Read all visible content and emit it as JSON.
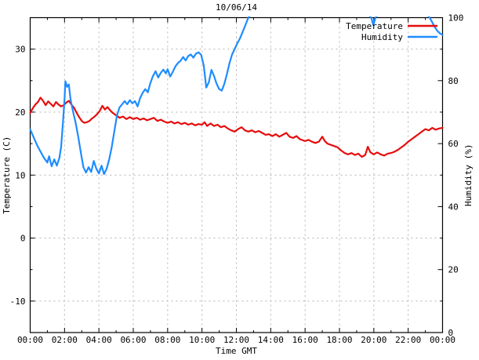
{
  "title": "10/06/14",
  "colors": {
    "temperature": "#e60d0d",
    "humidity": "#1e8cff",
    "grid": "#b3b3b3",
    "border": "#000000",
    "background": "#ffffff",
    "text": "#000000"
  },
  "chart_data": {
    "type": "line",
    "title": "10/06/14",
    "xlabel": "Time GMT",
    "ylabel_left": "Temperature (C)",
    "ylabel_right": "Humidity (%)",
    "xlim_hours": [
      0,
      24
    ],
    "ylim_left": [
      -15,
      35
    ],
    "ylim_right": [
      0,
      100
    ],
    "x_major_ticks_hours": [
      0,
      2,
      4,
      6,
      8,
      10,
      12,
      14,
      16,
      18,
      20,
      22,
      24
    ],
    "x_tick_labels": [
      "00:00",
      "02:00",
      "04:00",
      "06:00",
      "08:00",
      "10:00",
      "12:00",
      "14:00",
      "16:00",
      "18:00",
      "20:00",
      "22:00",
      "00:00"
    ],
    "x_minor_step_hours": 1,
    "left_major_ticks": [
      -10,
      0,
      10,
      20,
      30
    ],
    "left_minor_ticks": [
      -5,
      5,
      15,
      25
    ],
    "right_major_ticks": [
      0,
      20,
      40,
      60,
      80,
      100
    ],
    "right_minor_ticks": [
      10,
      30,
      50,
      70,
      90
    ],
    "grid": true,
    "grid_vertical_hours": [
      2,
      4,
      6,
      8,
      10,
      12,
      14,
      16,
      18,
      20,
      22
    ],
    "grid_horizontal_left_values": [
      -10,
      0,
      10,
      20,
      30
    ],
    "legend_position": "top-right-inside-no-box",
    "series": [
      {
        "name": "Temperature",
        "axis": "left",
        "color": "#e60d0d",
        "points": [
          [
            0.0,
            19.9
          ],
          [
            0.15,
            20.6
          ],
          [
            0.3,
            21.2
          ],
          [
            0.45,
            21.6
          ],
          [
            0.6,
            22.3
          ],
          [
            0.75,
            21.8
          ],
          [
            0.9,
            21.1
          ],
          [
            1.05,
            21.7
          ],
          [
            1.2,
            21.3
          ],
          [
            1.35,
            20.9
          ],
          [
            1.5,
            21.6
          ],
          [
            1.65,
            21.2
          ],
          [
            1.8,
            20.9
          ],
          [
            1.95,
            21.1
          ],
          [
            2.1,
            21.5
          ],
          [
            2.25,
            21.8
          ],
          [
            2.4,
            21.2
          ],
          [
            2.55,
            20.7
          ],
          [
            2.7,
            19.9
          ],
          [
            2.85,
            19.2
          ],
          [
            3.0,
            18.6
          ],
          [
            3.15,
            18.3
          ],
          [
            3.3,
            18.4
          ],
          [
            3.45,
            18.6
          ],
          [
            3.6,
            19.0
          ],
          [
            3.75,
            19.3
          ],
          [
            3.9,
            19.7
          ],
          [
            4.05,
            20.2
          ],
          [
            4.2,
            21.0
          ],
          [
            4.35,
            20.4
          ],
          [
            4.5,
            20.8
          ],
          [
            4.65,
            20.3
          ],
          [
            4.8,
            19.9
          ],
          [
            5.0,
            19.5
          ],
          [
            5.2,
            19.1
          ],
          [
            5.4,
            19.3
          ],
          [
            5.6,
            18.9
          ],
          [
            5.8,
            19.2
          ],
          [
            6.0,
            18.9
          ],
          [
            6.2,
            19.1
          ],
          [
            6.4,
            18.8
          ],
          [
            6.6,
            19.0
          ],
          [
            6.8,
            18.7
          ],
          [
            7.0,
            18.9
          ],
          [
            7.2,
            19.1
          ],
          [
            7.4,
            18.6
          ],
          [
            7.6,
            18.8
          ],
          [
            7.8,
            18.5
          ],
          [
            8.0,
            18.3
          ],
          [
            8.2,
            18.5
          ],
          [
            8.4,
            18.2
          ],
          [
            8.6,
            18.4
          ],
          [
            8.8,
            18.1
          ],
          [
            9.0,
            18.3
          ],
          [
            9.2,
            18.0
          ],
          [
            9.4,
            18.2
          ],
          [
            9.6,
            17.9
          ],
          [
            9.8,
            18.1
          ],
          [
            10.0,
            18.0
          ],
          [
            10.15,
            18.4
          ],
          [
            10.3,
            17.8
          ],
          [
            10.5,
            18.2
          ],
          [
            10.7,
            17.8
          ],
          [
            10.9,
            18.0
          ],
          [
            11.1,
            17.6
          ],
          [
            11.3,
            17.8
          ],
          [
            11.5,
            17.4
          ],
          [
            11.7,
            17.1
          ],
          [
            11.9,
            16.9
          ],
          [
            12.1,
            17.3
          ],
          [
            12.3,
            17.6
          ],
          [
            12.5,
            17.1
          ],
          [
            12.7,
            16.9
          ],
          [
            12.9,
            17.1
          ],
          [
            13.1,
            16.8
          ],
          [
            13.3,
            17.0
          ],
          [
            13.5,
            16.7
          ],
          [
            13.7,
            16.4
          ],
          [
            13.9,
            16.5
          ],
          [
            14.1,
            16.2
          ],
          [
            14.3,
            16.5
          ],
          [
            14.5,
            16.1
          ],
          [
            14.7,
            16.4
          ],
          [
            14.9,
            16.7
          ],
          [
            15.1,
            16.1
          ],
          [
            15.3,
            15.9
          ],
          [
            15.5,
            16.2
          ],
          [
            15.7,
            15.7
          ],
          [
            16.0,
            15.4
          ],
          [
            16.2,
            15.6
          ],
          [
            16.4,
            15.3
          ],
          [
            16.6,
            15.1
          ],
          [
            16.8,
            15.3
          ],
          [
            17.0,
            16.1
          ],
          [
            17.15,
            15.4
          ],
          [
            17.3,
            15.0
          ],
          [
            17.5,
            14.8
          ],
          [
            17.7,
            14.6
          ],
          [
            17.9,
            14.4
          ],
          [
            18.1,
            13.9
          ],
          [
            18.3,
            13.5
          ],
          [
            18.5,
            13.3
          ],
          [
            18.7,
            13.5
          ],
          [
            18.9,
            13.2
          ],
          [
            19.1,
            13.4
          ],
          [
            19.3,
            12.9
          ],
          [
            19.5,
            13.2
          ],
          [
            19.65,
            14.5
          ],
          [
            19.8,
            13.6
          ],
          [
            20.0,
            13.3
          ],
          [
            20.2,
            13.6
          ],
          [
            20.4,
            13.3
          ],
          [
            20.6,
            13.1
          ],
          [
            20.8,
            13.4
          ],
          [
            21.0,
            13.5
          ],
          [
            21.2,
            13.7
          ],
          [
            21.4,
            14.0
          ],
          [
            21.6,
            14.4
          ],
          [
            21.8,
            14.8
          ],
          [
            22.0,
            15.3
          ],
          [
            22.2,
            15.7
          ],
          [
            22.4,
            16.1
          ],
          [
            22.6,
            16.5
          ],
          [
            22.8,
            16.9
          ],
          [
            23.0,
            17.3
          ],
          [
            23.2,
            17.1
          ],
          [
            23.4,
            17.5
          ],
          [
            23.6,
            17.2
          ],
          [
            23.8,
            17.4
          ],
          [
            24.0,
            17.5
          ]
        ]
      },
      {
        "name": "Humidity",
        "axis": "right",
        "color": "#1e8cff",
        "points": [
          [
            0.0,
            64.5
          ],
          [
            0.2,
            62
          ],
          [
            0.4,
            59.5
          ],
          [
            0.6,
            57.5
          ],
          [
            0.8,
            55.5
          ],
          [
            1.0,
            54
          ],
          [
            1.1,
            56
          ],
          [
            1.25,
            52.8
          ],
          [
            1.4,
            55
          ],
          [
            1.55,
            53
          ],
          [
            1.7,
            55.5
          ],
          [
            1.8,
            59
          ],
          [
            1.9,
            66
          ],
          [
            2.0,
            74
          ],
          [
            2.05,
            79.8
          ],
          [
            2.15,
            78
          ],
          [
            2.25,
            78.8
          ],
          [
            2.35,
            74
          ],
          [
            2.5,
            70
          ],
          [
            2.65,
            66.5
          ],
          [
            2.8,
            62
          ],
          [
            2.95,
            57
          ],
          [
            3.1,
            52.5
          ],
          [
            3.25,
            50.8
          ],
          [
            3.4,
            52.5
          ],
          [
            3.55,
            51
          ],
          [
            3.7,
            54.5
          ],
          [
            3.85,
            52
          ],
          [
            4.0,
            50.5
          ],
          [
            4.15,
            53
          ],
          [
            4.3,
            50.3
          ],
          [
            4.45,
            52
          ],
          [
            4.6,
            55
          ],
          [
            4.75,
            59
          ],
          [
            4.9,
            64
          ],
          [
            5.05,
            69
          ],
          [
            5.2,
            71.5
          ],
          [
            5.35,
            72.5
          ],
          [
            5.5,
            73.5
          ],
          [
            5.65,
            72.5
          ],
          [
            5.8,
            73.8
          ],
          [
            5.95,
            72.8
          ],
          [
            6.1,
            73.5
          ],
          [
            6.25,
            71.8
          ],
          [
            6.4,
            74.5
          ],
          [
            6.55,
            76.2
          ],
          [
            6.7,
            77.3
          ],
          [
            6.85,
            76.3
          ],
          [
            7.0,
            79.3
          ],
          [
            7.15,
            81.5
          ],
          [
            7.3,
            83
          ],
          [
            7.45,
            81
          ],
          [
            7.6,
            82.5
          ],
          [
            7.75,
            83.5
          ],
          [
            7.9,
            82.3
          ],
          [
            8.0,
            83.6
          ],
          [
            8.15,
            81.3
          ],
          [
            8.3,
            82.8
          ],
          [
            8.45,
            84.5
          ],
          [
            8.6,
            85.6
          ],
          [
            8.75,
            86.3
          ],
          [
            8.9,
            87.5
          ],
          [
            9.05,
            86.4
          ],
          [
            9.2,
            87.8
          ],
          [
            9.35,
            88.3
          ],
          [
            9.5,
            87.3
          ],
          [
            9.65,
            88.6
          ],
          [
            9.8,
            89
          ],
          [
            9.95,
            88.2
          ],
          [
            10.1,
            84.8
          ],
          [
            10.25,
            77.8
          ],
          [
            10.4,
            79.5
          ],
          [
            10.55,
            83.4
          ],
          [
            10.7,
            81.5
          ],
          [
            10.85,
            79
          ],
          [
            11.0,
            77.3
          ],
          [
            11.15,
            76.8
          ],
          [
            11.3,
            79
          ],
          [
            11.45,
            82
          ],
          [
            11.6,
            85.5
          ],
          [
            11.75,
            88.3
          ],
          [
            11.9,
            90
          ],
          [
            12.05,
            91.8
          ],
          [
            12.2,
            93.3
          ],
          [
            12.35,
            95.3
          ],
          [
            12.5,
            97.3
          ],
          [
            12.7,
            100
          ],
          [
            12.9,
            101.5
          ],
          [
            19.6,
            101.5
          ],
          [
            19.85,
            100
          ],
          [
            19.97,
            97.6
          ],
          [
            20.1,
            100
          ],
          [
            20.3,
            101.5
          ],
          [
            23.0,
            101.5
          ],
          [
            23.25,
            100
          ],
          [
            23.4,
            98.5
          ],
          [
            23.55,
            97
          ],
          [
            23.7,
            95.8
          ],
          [
            23.85,
            95
          ],
          [
            24.0,
            94.5
          ]
        ]
      }
    ]
  }
}
